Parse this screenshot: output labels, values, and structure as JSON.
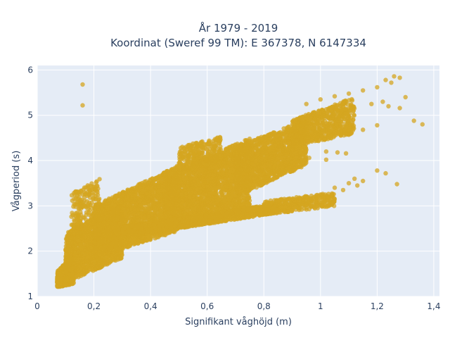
{
  "chart_data": {
    "type": "scatter",
    "title_line1": "År 1979 - 2019",
    "title_line2": "Koordinat (Sweref 99 TM): E 367378, N 6147334",
    "xlabel": "Signifikant våghöjd (m)",
    "ylabel": "Vågperiod (s)",
    "xlim": [
      0,
      1.42
    ],
    "ylim": [
      1,
      6.1
    ],
    "x_ticks": [
      0,
      0.2,
      0.4,
      0.6,
      0.8,
      1,
      1.2,
      1.4
    ],
    "x_tick_labels": [
      "0",
      "0,2",
      "0,4",
      "0,6",
      "0,8",
      "1",
      "1,2",
      "1,4"
    ],
    "y_ticks": [
      1,
      2,
      3,
      4,
      5,
      6
    ],
    "y_tick_labels": [
      "1",
      "2",
      "3",
      "4",
      "5",
      "6"
    ],
    "grid": true,
    "colors": {
      "marker": "#d4a520",
      "plot_bg": "#e5ecf6",
      "grid": "#ffffff",
      "text": "#2a3f5f"
    },
    "series": [
      {
        "marker_opacity": 0.75,
        "points": [
          [
            0.16,
            5.68
          ],
          [
            0.16,
            5.22
          ],
          [
            1.26,
            5.86
          ],
          [
            1.28,
            5.83
          ],
          [
            1.23,
            5.78
          ],
          [
            1.25,
            5.72
          ],
          [
            1.2,
            5.62
          ],
          [
            1.15,
            5.55
          ],
          [
            1.1,
            5.48
          ],
          [
            1.05,
            5.42
          ],
          [
            1.0,
            5.35
          ],
          [
            0.95,
            5.25
          ],
          [
            1.3,
            5.4
          ],
          [
            1.28,
            5.16
          ],
          [
            1.24,
            5.2
          ],
          [
            1.33,
            4.88
          ],
          [
            1.36,
            4.8
          ],
          [
            1.22,
            5.3
          ],
          [
            1.18,
            5.25
          ],
          [
            1.2,
            3.78
          ],
          [
            1.23,
            3.72
          ],
          [
            1.27,
            3.48
          ],
          [
            1.15,
            3.55
          ],
          [
            1.1,
            3.5
          ],
          [
            1.12,
            3.6
          ],
          [
            1.05,
            3.4
          ],
          [
            1.0,
            3.25
          ],
          [
            0.95,
            3.2
          ],
          [
            1.08,
            3.35
          ],
          [
            1.13,
            3.45
          ],
          [
            0.96,
            4.06
          ],
          [
            1.02,
            4.02
          ],
          [
            1.09,
            4.16
          ],
          [
            1.06,
            4.18
          ],
          [
            1.02,
            4.2
          ],
          [
            0.92,
            4.3
          ],
          [
            1.09,
            4.6
          ],
          [
            1.1,
            4.57
          ],
          [
            1.2,
            4.78
          ],
          [
            1.15,
            4.68
          ]
        ],
        "bands": [
          {
            "x": [
              0.07,
              0.13
            ],
            "y_lo": [
              1.2,
              1.28
            ],
            "y_hi": [
              1.55,
              1.95
            ],
            "n": 500
          },
          {
            "x": [
              0.1,
              0.3
            ],
            "y_lo": [
              1.3,
              1.85
            ],
            "y_hi": [
              2.4,
              3.1
            ],
            "n": 1600
          },
          {
            "x": [
              0.2,
              0.5
            ],
            "y_lo": [
              1.85,
              2.45
            ],
            "y_hi": [
              3.0,
              3.9
            ],
            "n": 2200
          },
          {
            "x": [
              0.45,
              0.75
            ],
            "y_lo": [
              2.45,
              2.85
            ],
            "y_hi": [
              3.7,
              4.5
            ],
            "n": 2200
          },
          {
            "x": [
              0.7,
              0.95
            ],
            "y_lo": [
              3.2,
              3.9
            ],
            "y_hi": [
              4.3,
              4.9
            ],
            "n": 1500
          },
          {
            "x": [
              0.9,
              1.12
            ],
            "y_lo": [
              4.3,
              4.6
            ],
            "y_hi": [
              4.9,
              5.4
            ],
            "n": 700
          },
          {
            "x": [
              0.3,
              0.85
            ],
            "y_lo": [
              2.3,
              2.85
            ],
            "y_hi": [
              2.55,
              3.05
            ],
            "n": 1400
          },
          {
            "x": [
              0.8,
              1.05
            ],
            "y_lo": [
              2.8,
              3.0
            ],
            "y_hi": [
              3.1,
              3.3
            ],
            "n": 350
          },
          {
            "x": [
              0.12,
              0.22
            ],
            "y_lo": [
              2.2,
              2.7
            ],
            "y_hi": [
              3.3,
              3.6
            ],
            "n": 200
          },
          {
            "x": [
              0.5,
              0.65
            ],
            "y_lo": [
              3.7,
              4.0
            ],
            "y_hi": [
              4.3,
              4.55
            ],
            "n": 250
          }
        ]
      }
    ]
  }
}
